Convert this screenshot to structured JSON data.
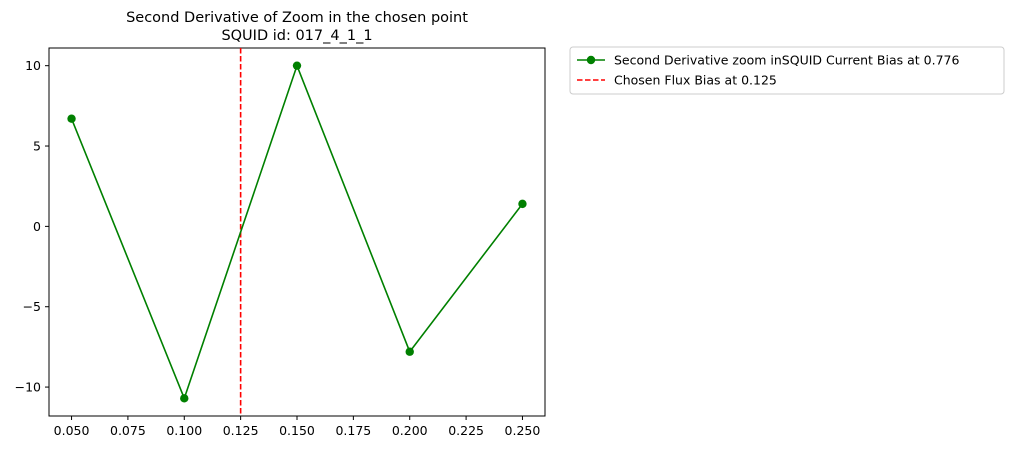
{
  "chart_data": {
    "type": "line",
    "title": "Second Derivative of Zoom in the chosen point",
    "subtitle": "SQUID id: 017_4_1_1",
    "xlabel": "",
    "ylabel": "",
    "xlim": [
      0.04,
      0.26
    ],
    "ylim": [
      -11.8,
      11.1
    ],
    "xticks": [
      "0.050",
      "0.075",
      "0.100",
      "0.125",
      "0.150",
      "0.175",
      "0.200",
      "0.225",
      "0.250"
    ],
    "xtick_values": [
      0.05,
      0.075,
      0.1,
      0.125,
      0.15,
      0.175,
      0.2,
      0.225,
      0.25
    ],
    "yticks": [
      "10",
      "5",
      "0",
      "−5",
      "−10"
    ],
    "ytick_values": [
      10,
      5,
      0,
      -5,
      -10
    ],
    "grid": false,
    "legend_placement": "outside-upper-right",
    "series": [
      {
        "name": "Second Derivative zoom inSQUID Current Bias at 0.776",
        "color": "#008000",
        "marker": "circle",
        "x": [
          0.05,
          0.1,
          0.15,
          0.2,
          0.25
        ],
        "y": [
          6.7,
          -10.7,
          10.0,
          -7.8,
          1.4
        ]
      }
    ],
    "vlines": [
      {
        "name": "Chosen Flux Bias at 0.125",
        "x": 0.125,
        "color": "#ff0000",
        "style": "dashed"
      }
    ]
  }
}
